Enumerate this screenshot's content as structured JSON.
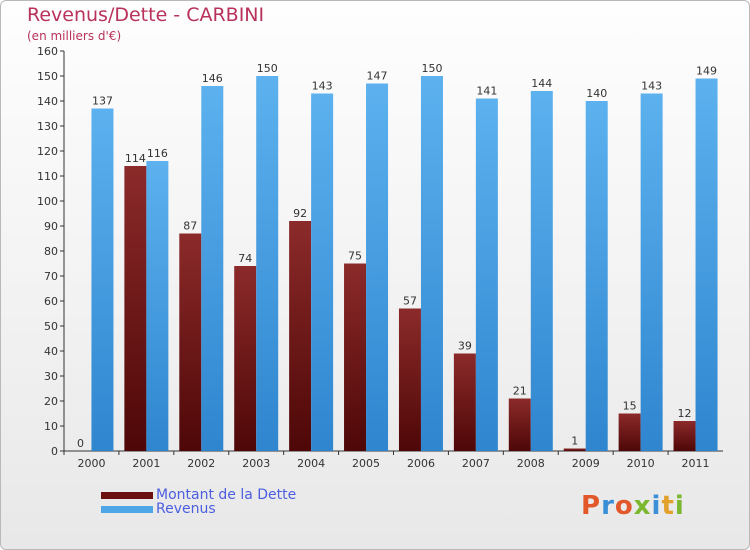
{
  "chart_data": {
    "type": "bar",
    "title": "Revenus/Dette - CARBINI",
    "subtitle": "(en milliers d'€)",
    "xlabel": "",
    "ylabel": "",
    "categories": [
      "2000",
      "2001",
      "2002",
      "2003",
      "2004",
      "2005",
      "2006",
      "2007",
      "2008",
      "2009",
      "2010",
      "2011"
    ],
    "series": [
      {
        "name": "Montant de la Dette",
        "values": [
          0,
          114,
          87,
          74,
          92,
          75,
          57,
          39,
          21,
          1,
          15,
          12
        ],
        "color": "#6b0f0f"
      },
      {
        "name": "Revenus",
        "values": [
          137,
          116,
          146,
          150,
          143,
          147,
          150,
          141,
          144,
          140,
          143,
          149
        ],
        "color": "#4ea6e6"
      }
    ],
    "ylim": [
      0,
      160
    ],
    "yticks": [
      0,
      10,
      20,
      30,
      40,
      50,
      60,
      70,
      80,
      90,
      100,
      110,
      120,
      130,
      140,
      150,
      160
    ],
    "grid": false,
    "legend_position": "bottom-left"
  },
  "logo": {
    "text": "Proxiti"
  },
  "colors": {
    "title": "#b8325b",
    "legend_text": "#4c5ee0",
    "debt": "#6b0f0f",
    "revenue": "#4ea6e6"
  }
}
